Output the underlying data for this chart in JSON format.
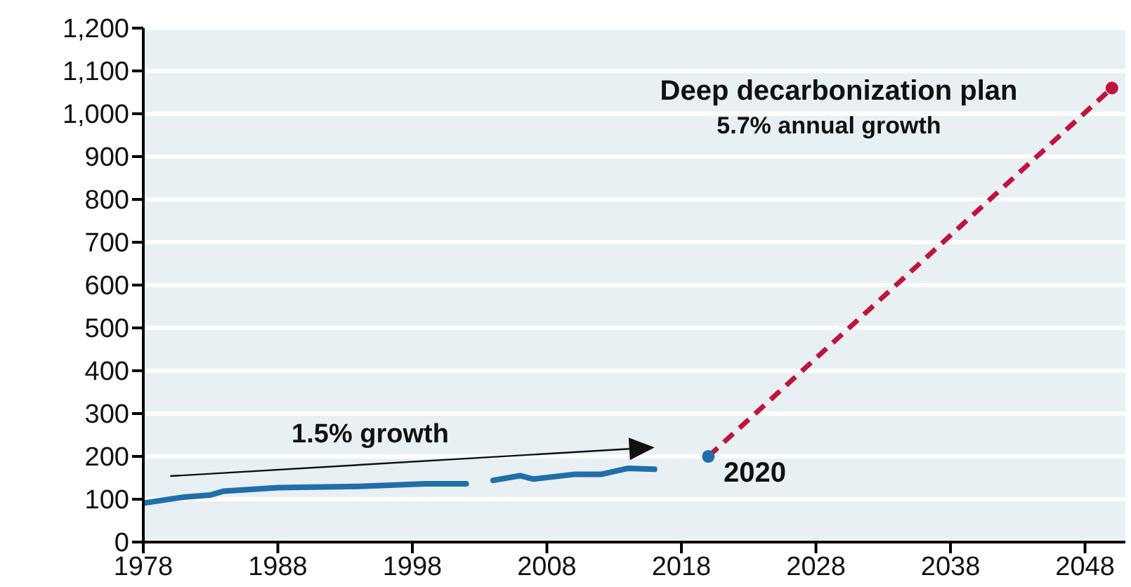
{
  "chart_data": {
    "type": "line",
    "xlim": [
      1978,
      2051
    ],
    "xticks": [
      1978,
      1988,
      1998,
      2008,
      2018,
      2028,
      2038,
      2048
    ],
    "ylim": [
      0,
      1200
    ],
    "yticks": [
      {
        "value": 0,
        "label": "0"
      },
      {
        "value": 100,
        "label": "100"
      },
      {
        "value": 200,
        "label": "200"
      },
      {
        "value": 300,
        "label": "300"
      },
      {
        "value": 400,
        "label": "400"
      },
      {
        "value": 500,
        "label": "500"
      },
      {
        "value": 600,
        "label": "600"
      },
      {
        "value": 700,
        "label": "700"
      },
      {
        "value": 800,
        "label": "800"
      },
      {
        "value": 900,
        "label": "900"
      },
      {
        "value": 1000,
        "label": "1,000"
      },
      {
        "value": 1100,
        "label": "1,100"
      },
      {
        "value": 1200,
        "label": "1,200"
      }
    ],
    "grid": "y",
    "series": [
      {
        "color": "#1f6fa8",
        "marker": "none",
        "line_style": "solid",
        "x": [
          1978,
          1981,
          1983,
          1984,
          1988,
          1994,
          1999,
          2002,
          2003,
          2004,
          2006,
          2007,
          2010,
          2012,
          2014,
          2016
        ],
        "values": [
          91,
          105,
          110,
          119,
          127,
          130,
          136,
          136,
          null,
          144,
          155,
          147,
          158,
          158,
          172,
          170
        ]
      },
      {
        "type": "line",
        "color": "#c0143c",
        "marker": "none",
        "line_style": "dashed",
        "x": [
          2020,
          2050
        ],
        "values": [
          200,
          1060
        ]
      },
      {
        "type": "scatter",
        "color": "#1f6fa8",
        "marker": "circle",
        "x": [
          2020
        ],
        "values": [
          200
        ]
      },
      {
        "type": "scatter",
        "color": "#c0143c",
        "marker": "circle",
        "x": [
          2050
        ],
        "values": [
          1060
        ]
      }
    ],
    "annotations": [
      "Deep decarbonization plan",
      "5.7% annual growth",
      "2020",
      "1.5% growth"
    ]
  }
}
